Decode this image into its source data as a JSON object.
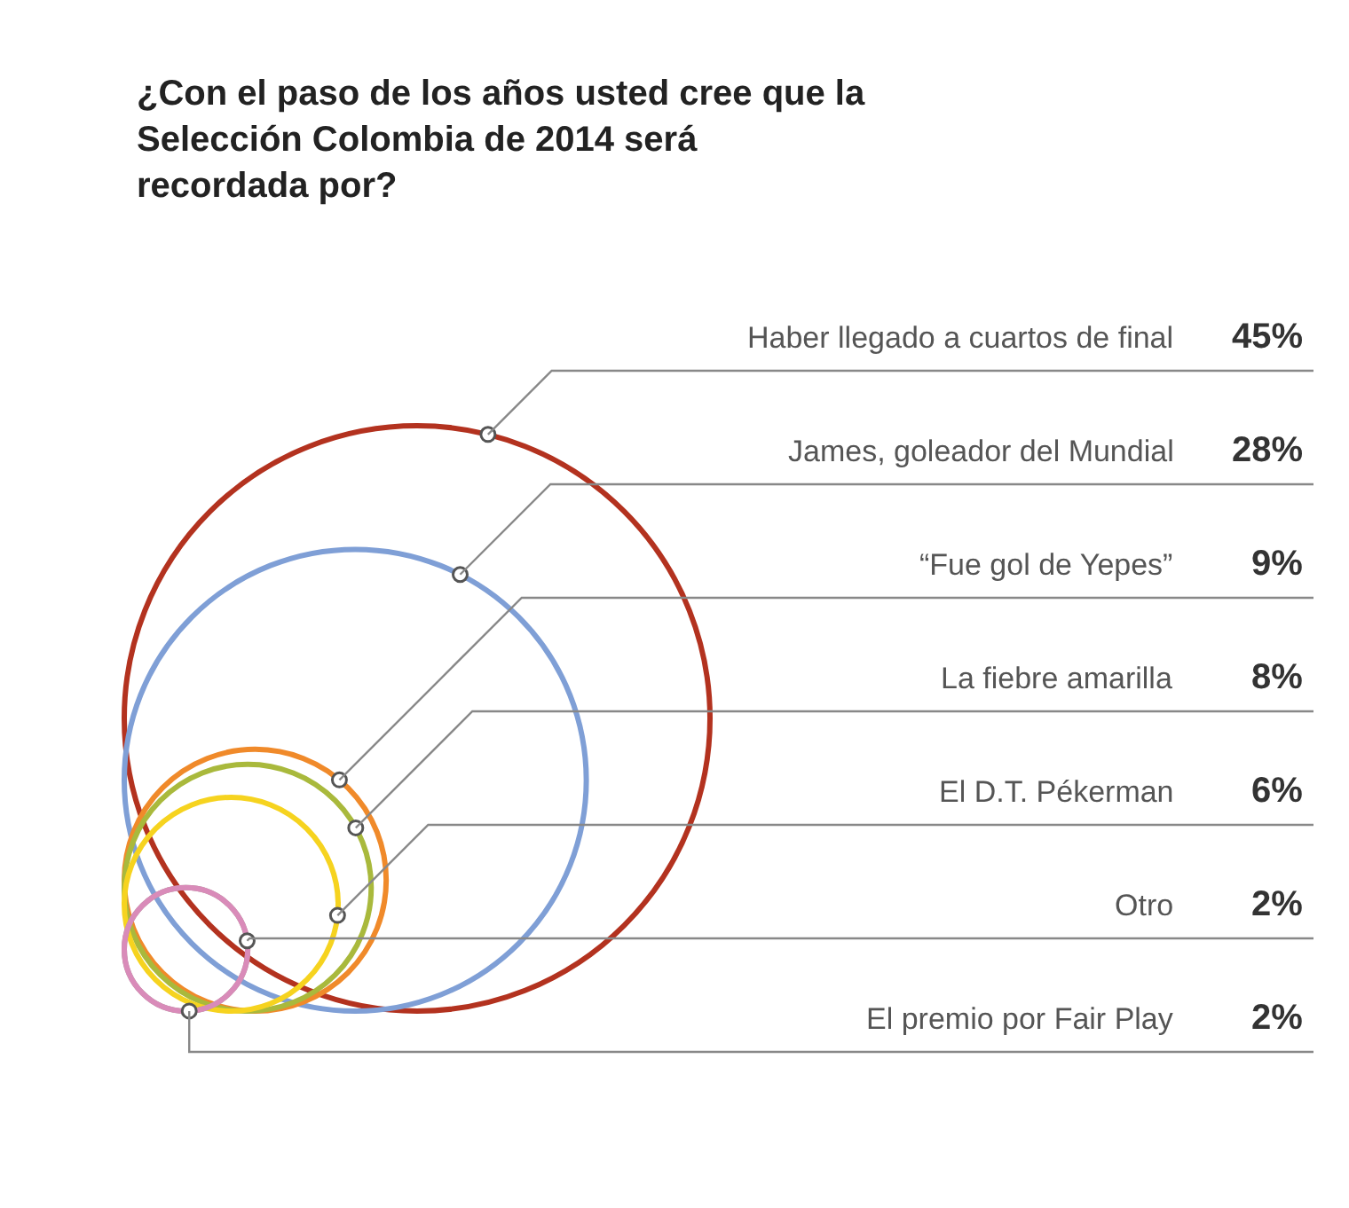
{
  "chart_data": {
    "type": "other",
    "title": "¿Con el paso de los años usted cree que la\nSelección Colombia de 2014 será\nrecordada por?",
    "categories": [
      "Haber llegado a cuartos de final",
      "James, goleador del Mundial",
      "“Fue gol de Yepes”",
      "La fiebre amarilla",
      "El D.T. Pékerman",
      "Otro",
      "El premio por Fair Play"
    ],
    "values": [
      45,
      28,
      9,
      8,
      6,
      2,
      2
    ],
    "value_labels": [
      "45%",
      "28%",
      "9%",
      "8%",
      "6%",
      "2%",
      "2%"
    ],
    "colors": [
      "#b3321f",
      "#7f9fd6",
      "#f08a2a",
      "#a9b93c",
      "#f6d31f",
      "#a39d92",
      "#d98bb9"
    ]
  }
}
